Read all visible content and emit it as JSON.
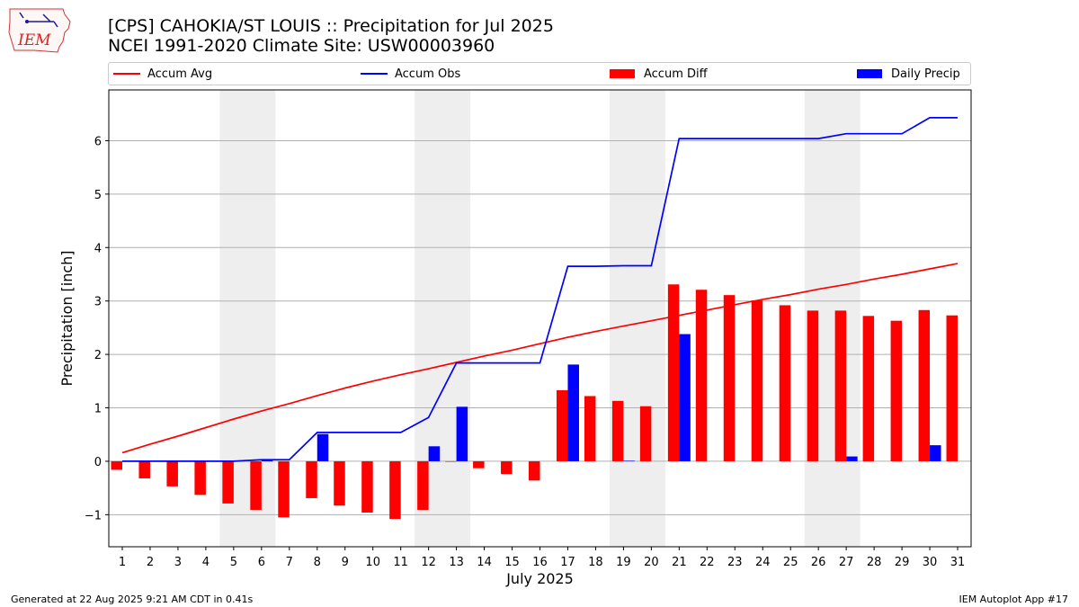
{
  "header": {
    "logo_text": "IEM",
    "title_line1": "[CPS] CAHOKIA/ST LOUIS :: Precipitation for Jul 2025",
    "title_line2": "NCEI 1991-2020 Climate Site: USW00003960"
  },
  "footer": {
    "generated": "Generated at 22 Aug 2025 9:21 AM CDT in 0.41s",
    "app": "IEM Autoplot App #17"
  },
  "colors": {
    "avg": "#ff0000",
    "obs": "#0000ff",
    "diff": "#ff0000",
    "daily": "#0000ff",
    "weekend_shade": "#eeeeee",
    "grid": "#b0b0b0"
  },
  "chart_data": {
    "type": "bar",
    "xlabel": "July 2025",
    "ylabel": "Precipitation [inch]",
    "ylim": [
      -1.6,
      6.95
    ],
    "yticks": [
      -1,
      0,
      1,
      2,
      3,
      4,
      5,
      6
    ],
    "ytick_labels": [
      "−1",
      "0",
      "1",
      "2",
      "3",
      "4",
      "5",
      "6"
    ],
    "grid": "horizontal",
    "legend_placement": "top",
    "categories": [
      "1",
      "2",
      "3",
      "4",
      "5",
      "6",
      "7",
      "8",
      "9",
      "10",
      "11",
      "12",
      "13",
      "14",
      "15",
      "16",
      "17",
      "18",
      "19",
      "20",
      "21",
      "22",
      "23",
      "24",
      "25",
      "26",
      "27",
      "28",
      "29",
      "30",
      "31"
    ],
    "shaded_weekends": [
      [
        5,
        6
      ],
      [
        12,
        13
      ],
      [
        19,
        20
      ],
      [
        26,
        27
      ]
    ],
    "series": [
      {
        "name": "Accum Avg",
        "type": "line",
        "values": [
          0.16,
          0.32,
          0.47,
          0.63,
          0.79,
          0.94,
          1.08,
          1.23,
          1.37,
          1.5,
          1.62,
          1.73,
          1.85,
          1.97,
          2.08,
          2.2,
          2.32,
          2.43,
          2.53,
          2.63,
          2.73,
          2.83,
          2.93,
          3.03,
          3.12,
          3.22,
          3.31,
          3.41,
          3.5,
          3.6,
          3.7
        ]
      },
      {
        "name": "Accum Obs",
        "type": "line",
        "values": [
          0.0,
          0.0,
          0.0,
          0.0,
          0.0,
          0.03,
          0.03,
          0.54,
          0.54,
          0.54,
          0.54,
          0.82,
          1.84,
          1.84,
          1.84,
          1.84,
          3.65,
          3.65,
          3.66,
          3.66,
          6.04,
          6.04,
          6.04,
          6.04,
          6.04,
          6.04,
          6.13,
          6.13,
          6.13,
          6.43,
          6.43
        ]
      },
      {
        "name": "Accum Diff",
        "type": "bar",
        "values": [
          -0.16,
          -0.32,
          -0.47,
          -0.63,
          -0.79,
          -0.91,
          -1.05,
          -0.69,
          -0.83,
          -0.96,
          -1.08,
          -0.91,
          -0.01,
          -0.13,
          -0.24,
          -0.36,
          1.33,
          1.22,
          1.13,
          1.03,
          3.31,
          3.21,
          3.11,
          3.01,
          2.92,
          2.82,
          2.82,
          2.72,
          2.63,
          2.83,
          2.73
        ]
      },
      {
        "name": "Daily Precip",
        "type": "bar",
        "values": [
          0,
          0,
          0,
          0,
          0,
          0.03,
          0,
          0.51,
          0,
          0,
          0,
          0.28,
          1.02,
          0,
          0,
          0,
          1.81,
          0,
          0.01,
          0,
          2.38,
          0,
          0,
          0,
          0,
          0,
          0.09,
          0,
          0,
          0.3,
          0
        ]
      }
    ]
  }
}
